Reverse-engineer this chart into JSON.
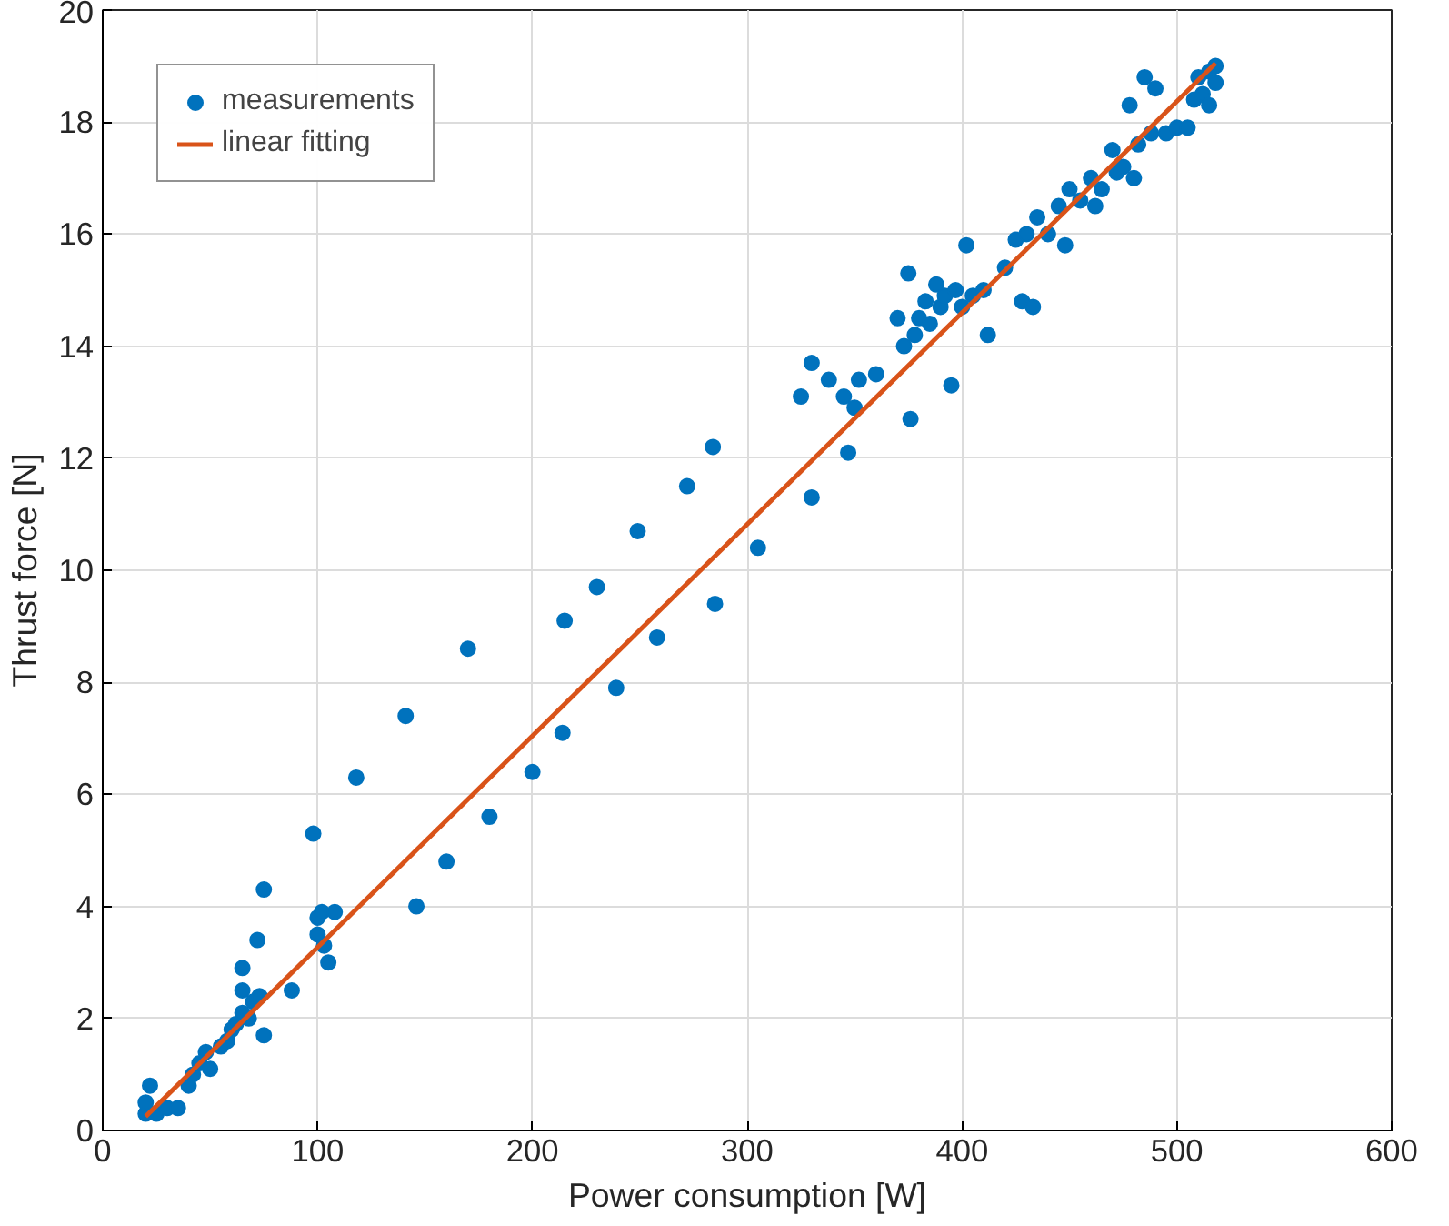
{
  "chart_data": {
    "type": "scatter",
    "xlabel": "Power consumption [W]",
    "ylabel": "Thrust force [N]",
    "xlim": [
      0,
      600
    ],
    "ylim": [
      0,
      20
    ],
    "xticks": [
      0,
      100,
      200,
      300,
      400,
      500,
      600
    ],
    "yticks": [
      0,
      2,
      4,
      6,
      8,
      10,
      12,
      14,
      16,
      18,
      20
    ],
    "grid": true,
    "legend": "top left",
    "series": [
      {
        "name": "measurements",
        "color": "#0072bd",
        "marker": "circle",
        "x": [
          20,
          20,
          22,
          25,
          30,
          35,
          40,
          42,
          45,
          48,
          50,
          55,
          58,
          60,
          62,
          65,
          65,
          65,
          68,
          70,
          72,
          73,
          75,
          75,
          88,
          98,
          100,
          100,
          102,
          103,
          105,
          108,
          118,
          141,
          146,
          160,
          170,
          180,
          200,
          214,
          215,
          230,
          239,
          249,
          258,
          272,
          284,
          285,
          305,
          325,
          330,
          330,
          338,
          345,
          347,
          350,
          352,
          360,
          370,
          373,
          375,
          376,
          378,
          380,
          383,
          385,
          388,
          390,
          392,
          395,
          397,
          400,
          402,
          405,
          410,
          412,
          420,
          425,
          428,
          430,
          433,
          435,
          440,
          445,
          448,
          450,
          455,
          460,
          462,
          465,
          470,
          472,
          475,
          478,
          480,
          482,
          485,
          488,
          490,
          495,
          500,
          505,
          508,
          510,
          512,
          515,
          515,
          518,
          518
        ],
        "values": [
          0.3,
          0.5,
          0.8,
          0.3,
          0.4,
          0.4,
          0.8,
          1.0,
          1.2,
          1.4,
          1.1,
          1.5,
          1.6,
          1.8,
          1.9,
          2.1,
          2.5,
          2.9,
          2.0,
          2.3,
          3.4,
          2.4,
          1.7,
          4.3,
          2.5,
          5.3,
          3.8,
          3.5,
          3.9,
          3.3,
          3.0,
          3.9,
          6.3,
          7.4,
          4.0,
          4.8,
          8.6,
          5.6,
          6.4,
          7.1,
          9.1,
          9.7,
          7.9,
          10.7,
          8.8,
          11.5,
          12.2,
          9.4,
          10.4,
          13.1,
          13.7,
          11.3,
          13.4,
          13.1,
          12.1,
          12.9,
          13.4,
          13.5,
          14.5,
          14.0,
          15.3,
          12.7,
          14.2,
          14.5,
          14.8,
          14.4,
          15.1,
          14.7,
          14.9,
          13.3,
          15.0,
          14.7,
          15.8,
          14.9,
          15.0,
          14.2,
          15.4,
          15.9,
          14.8,
          16.0,
          14.7,
          16.3,
          16.0,
          16.5,
          15.8,
          16.8,
          16.6,
          17.0,
          16.5,
          16.8,
          17.5,
          17.1,
          17.2,
          18.3,
          17.0,
          17.6,
          18.8,
          17.8,
          18.6,
          17.8,
          17.9,
          17.9,
          18.4,
          18.8,
          18.5,
          18.9,
          18.3,
          18.7,
          19.0
        ]
      },
      {
        "name": "linear fitting",
        "color": "#d95319",
        "type": "line",
        "marker": "none",
        "line_style": "solid",
        "x": [
          20,
          518
        ],
        "values": [
          0.25,
          19.05
        ]
      }
    ]
  }
}
